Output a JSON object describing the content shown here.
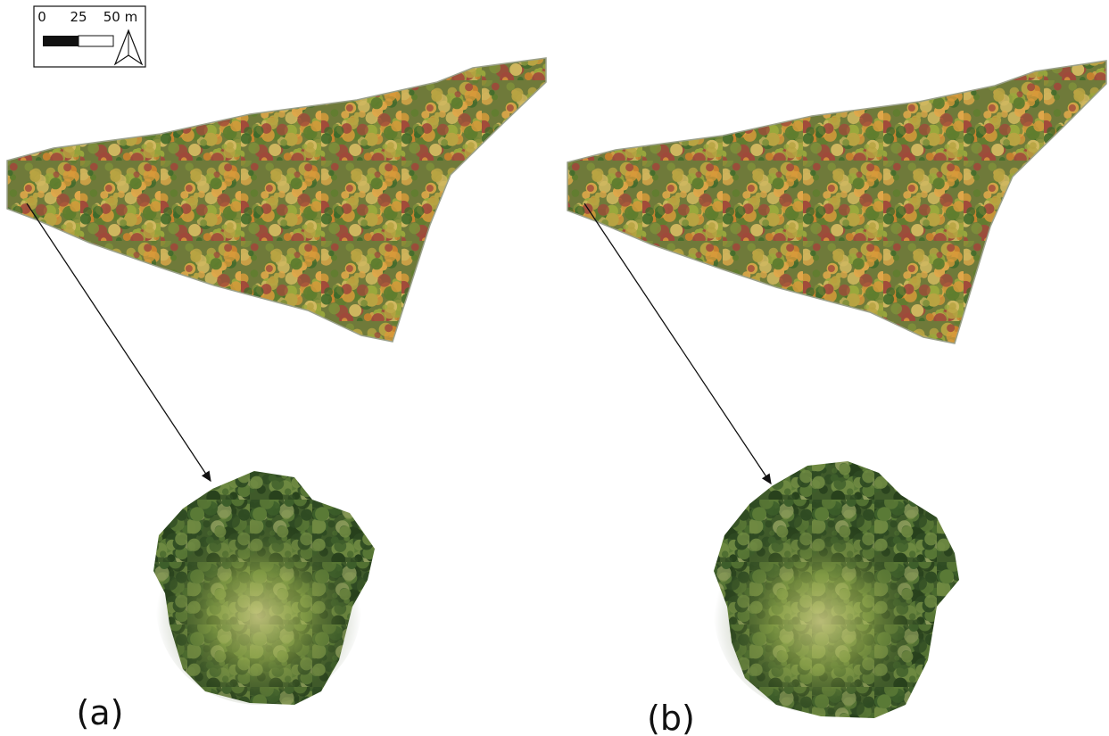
{
  "scale_bar": {
    "labels": [
      "0",
      "25",
      "50 m"
    ]
  },
  "panels": [
    {
      "label": "(a)"
    },
    {
      "label": "(b)"
    }
  ]
}
